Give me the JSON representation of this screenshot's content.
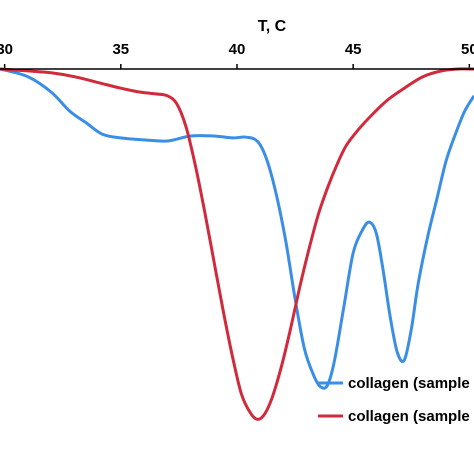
{
  "chart_data": {
    "type": "line",
    "xlabel": "T, C",
    "x_axis_position": "top",
    "xlim": [
      29.8,
      50.2
    ],
    "ylim": [
      0,
      1
    ],
    "x_ticks": [
      30,
      35,
      40,
      45,
      50
    ],
    "grid": false,
    "legend_position": "bottom-right",
    "series": [
      {
        "name": "collagen (sample",
        "color": "#3a8ee6",
        "x": [
          29.8,
          31.0,
          32.0,
          32.8,
          33.5,
          34.2,
          35.0,
          36.0,
          37.0,
          38.0,
          39.0,
          39.8,
          40.4,
          40.9,
          41.3,
          41.7,
          42.1,
          42.5,
          42.9,
          43.3,
          43.6,
          43.9,
          44.2,
          44.6,
          45.0,
          45.4,
          45.7,
          46.0,
          46.3,
          46.6,
          46.9,
          47.2,
          47.5,
          47.8,
          48.2,
          48.6,
          49.0,
          49.4,
          49.8,
          50.2
        ],
        "y": [
          0.0,
          0.02,
          0.06,
          0.11,
          0.14,
          0.17,
          0.18,
          0.185,
          0.188,
          0.175,
          0.175,
          0.18,
          0.178,
          0.19,
          0.24,
          0.33,
          0.45,
          0.6,
          0.73,
          0.8,
          0.83,
          0.825,
          0.76,
          0.62,
          0.48,
          0.42,
          0.4,
          0.43,
          0.53,
          0.65,
          0.74,
          0.76,
          0.68,
          0.56,
          0.44,
          0.34,
          0.24,
          0.17,
          0.11,
          0.07
        ]
      },
      {
        "name": "collagen (sample",
        "color": "#d12a3c",
        "x": [
          29.8,
          31.0,
          32.0,
          33.0,
          34.0,
          35.0,
          35.8,
          36.5,
          37.0,
          37.4,
          37.8,
          38.2,
          38.6,
          39.0,
          39.4,
          39.8,
          40.2,
          40.6,
          40.9,
          41.2,
          41.5,
          41.9,
          42.3,
          42.7,
          43.1,
          43.5,
          43.9,
          44.3,
          44.7,
          45.2,
          45.8,
          46.5,
          47.2,
          48.0,
          48.8,
          49.5,
          50.2
        ],
        "y": [
          0.0,
          0.005,
          0.01,
          0.02,
          0.035,
          0.05,
          0.06,
          0.065,
          0.07,
          0.09,
          0.15,
          0.25,
          0.37,
          0.5,
          0.63,
          0.75,
          0.85,
          0.9,
          0.915,
          0.9,
          0.86,
          0.78,
          0.68,
          0.57,
          0.47,
          0.38,
          0.31,
          0.25,
          0.2,
          0.16,
          0.12,
          0.08,
          0.05,
          0.02,
          0.005,
          0.0,
          0.0
        ]
      }
    ]
  }
}
